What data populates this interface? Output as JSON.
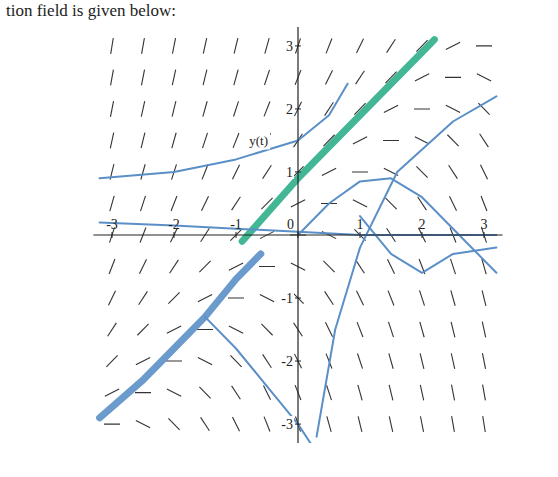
{
  "chart_data": {
    "type": "field",
    "title": "tion field is given below:",
    "ylabel": "y(t)",
    "xlim": [
      -3.3,
      3.3
    ],
    "ylim": [
      -3.3,
      3.3
    ],
    "xticks": [
      -3,
      -2,
      -1,
      0,
      1,
      2,
      3
    ],
    "yticks": [
      -3,
      -2,
      -1,
      1,
      2,
      3
    ],
    "grid": false,
    "slopes": {
      "x": [
        -3,
        -2.5,
        -2,
        -1.5,
        -1,
        -0.5,
        0,
        0.5,
        1,
        1.5,
        2,
        2.5,
        3
      ],
      "y": [
        3,
        2.5,
        2,
        1.5,
        1,
        0.5,
        0,
        -0.5,
        -1,
        -1.5,
        -2,
        -2.5,
        -3
      ],
      "color": "#333333",
      "values": [
        [
          6,
          5.5,
          5,
          4.5,
          4,
          3.5,
          3,
          2.5,
          2,
          1.5,
          1,
          0.5,
          0
        ],
        [
          5.5,
          5,
          4.5,
          4,
          3.5,
          3,
          2.5,
          2,
          1.5,
          1,
          0.5,
          0,
          -0.5
        ],
        [
          5,
          4.5,
          4,
          3.5,
          3,
          2.5,
          2,
          1.5,
          1,
          0.5,
          0,
          -0.5,
          -1
        ],
        [
          4.5,
          4,
          3.5,
          3,
          2.5,
          2,
          1.5,
          1,
          0.5,
          0,
          -0.5,
          -1,
          -1.5
        ],
        [
          4,
          3.5,
          3,
          2.5,
          2,
          1.5,
          1,
          0.5,
          0,
          -0.5,
          -1,
          -1.5,
          -2
        ],
        [
          3.5,
          3,
          2.5,
          2,
          1.5,
          1,
          0.5,
          0,
          -0.5,
          -1,
          -1.5,
          -2,
          -2.5
        ],
        [
          3,
          2.5,
          2,
          1.5,
          1,
          0.5,
          0,
          -0.5,
          -1,
          -1.5,
          -2,
          -2.5,
          -3
        ],
        [
          2.5,
          2,
          1.5,
          1,
          0.5,
          0,
          -0.5,
          -1,
          -1.5,
          -2,
          -2.5,
          -3,
          -3.5
        ],
        [
          2,
          1.5,
          1,
          0.5,
          0,
          -0.5,
          -1,
          -1.5,
          -2,
          -2.5,
          -3,
          -3.5,
          -4
        ],
        [
          1.5,
          1,
          0.5,
          0,
          -0.5,
          -1,
          -1.5,
          -2,
          -2.5,
          -3,
          -3.5,
          -4,
          -4.5
        ],
        [
          1,
          0.5,
          0,
          -0.5,
          -1,
          -1.5,
          -2,
          -2.5,
          -3,
          -3.5,
          -4,
          -4.5,
          -5
        ],
        [
          0.5,
          0,
          -0.5,
          -1,
          -1.5,
          -2,
          -2.5,
          -3,
          -3.5,
          -4,
          -4.5,
          -5,
          -5.5
        ],
        [
          0,
          -0.5,
          -1,
          -1.5,
          -2,
          -2.5,
          -3,
          -3.5,
          -4,
          -4.5,
          -5,
          -5.5,
          -6
        ]
      ]
    },
    "series": [
      {
        "color": "#5b8fc7",
        "x": [
          -3.2,
          -2.5,
          -2,
          -1.5,
          -1,
          -0.6
        ],
        "values": [
          -2.9,
          -2.3,
          -1.8,
          -1.3,
          -0.7,
          -0.3
        ]
      },
      {
        "color": "#2fae8a",
        "x": [
          -0.9,
          0,
          1,
          2,
          2.2
        ],
        "values": [
          -0.1,
          0.9,
          1.9,
          2.9,
          3.1
        ]
      },
      {
        "color": "#5b8fc7",
        "x": [
          -3.2,
          -2,
          -1,
          0,
          0.5,
          0.8
        ],
        "values": [
          0.9,
          1.0,
          1.2,
          1.5,
          1.9,
          2.4
        ]
      },
      {
        "color": "#5b8fc7",
        "x": [
          0,
          0.5,
          1,
          1.5,
          2,
          2.5,
          3.2
        ],
        "values": [
          0,
          0.5,
          0.85,
          0.9,
          0.6,
          0.1,
          -0.6
        ]
      },
      {
        "color": "#5b8fc7",
        "x": [
          0.3,
          0.6,
          1,
          1.6,
          2.5,
          3.2
        ],
        "values": [
          -3.2,
          -1.5,
          -0.2,
          1,
          1.8,
          2.2
        ]
      },
      {
        "color": "#5b8fc7",
        "x": [
          -3.2,
          -2,
          -1,
          0,
          1,
          2,
          3.2
        ],
        "values": [
          0.2,
          0.15,
          0.1,
          0.05,
          0,
          0,
          0
        ]
      },
      {
        "color": "#5b8fc7",
        "x": [
          1,
          1.5,
          2,
          2.5,
          3.2
        ],
        "values": [
          0.3,
          -0.3,
          -0.6,
          -0.3,
          -0.2
        ]
      },
      {
        "color": "#5b8fc7",
        "x": [
          -1.5,
          -1,
          -0.5,
          0,
          0.2
        ],
        "values": [
          -1.3,
          -1.8,
          -2.4,
          -3,
          -3.3
        ]
      }
    ]
  }
}
